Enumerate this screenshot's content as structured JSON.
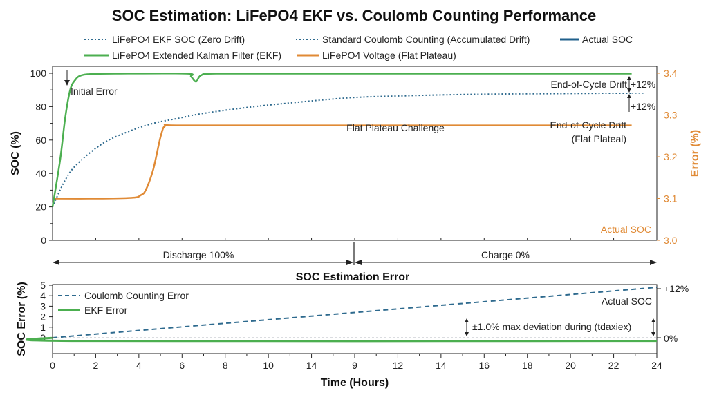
{
  "title": "SOC Estimation: LiFePO4 EKF vs. Coulomb Counting Performance",
  "colors": {
    "ekf": "#4caf50",
    "ekf_soc": "#2e6a8e",
    "coulomb": "#2e6a8e",
    "actual": "#1f5f8b",
    "voltage": "#e08a35",
    "axis": "#222222",
    "right_axis": "#e08a35"
  },
  "legend": {
    "ekf_soc": "LiFePO4 EKF SOC (Zero Drift)",
    "coulomb": "Standard Coulomb Counting (Accumulated Drift)",
    "actual": "Actual SOC",
    "ekf": "LiFePO4 Extended Kalman Filter (EKF)",
    "voltage": "LiFePO4 Voltage (Flat Plateau)"
  },
  "annotations": {
    "initial_error": "Initial Error",
    "eoc_drift": "End-of-Cycle Drift",
    "eoc_plus12_top": "+12%",
    "eoc_plus12_mid": "+12%",
    "flat_plateau": "Flat Plateau Challenge",
    "eoc_drift_flat_1": "End-of-Cycle Drift",
    "eoc_drift_flat_2": "(Flat Plateal)",
    "actual_soc_right": "Actual SOC",
    "discharge": "Discharge 100%",
    "charge": "Charge 0%",
    "bottom_plus12": "+12%",
    "bottom_zero": "0%",
    "bottom_actual": "Actual SOC",
    "max_dev": "±1.0% max deviation during (tdaxiex)"
  },
  "bottom": {
    "title": "SOC Estimation Error",
    "legend_coulomb": "Coulomb Counting Error",
    "legend_ekf": "EKF Error"
  },
  "chart_data": [
    {
      "type": "line",
      "ylabel": "SOC (%)",
      "ylabel_right": "Error (%)",
      "ylim": [
        0,
        100
      ],
      "ylim_right": [
        3.0,
        3.4
      ],
      "yticks": [
        0,
        20,
        40,
        60,
        80,
        100
      ],
      "yticks_right": [
        "3.0",
        "3.1",
        "3.2",
        "3.3",
        "3.4"
      ],
      "x_range_hours": [
        0,
        24
      ],
      "series": [
        {
          "name": "LiFePO4 Extended Kalman Filter (EKF)",
          "axis": "left",
          "x": [
            0,
            0.3,
            0.5,
            0.7,
            0.9,
            1.1,
            1.5,
            2.5,
            5.3,
            5.5,
            5.7,
            5.9,
            6.5,
            10,
            15,
            20,
            23
          ],
          "y": [
            20,
            48,
            73,
            90,
            96,
            98.5,
            99.5,
            99.8,
            99.8,
            98,
            95,
            98.8,
            99.8,
            99.8,
            99.8,
            99.8,
            99.8
          ]
        },
        {
          "name": "LiFePO4 EKF SOC (Zero Drift)",
          "axis": "left",
          "x": [
            0,
            0.5,
            1,
            2,
            3,
            4,
            5,
            6,
            8,
            10,
            12,
            14,
            16,
            18,
            20,
            22,
            23
          ],
          "y": [
            20,
            36,
            46,
            58,
            65,
            70,
            73,
            76,
            80,
            83,
            85.5,
            86.5,
            87.2,
            87.6,
            87.8,
            88,
            88
          ]
        },
        {
          "name": "Standard Coulomb Counting (Accumulated Drift)",
          "axis": "left",
          "x": [
            23,
            23.5
          ],
          "y": [
            88,
            88
          ]
        },
        {
          "name": "LiFePO4 Voltage (Flat Plateau)",
          "axis": "right",
          "x": [
            0,
            2,
            3.2,
            3.5,
            3.7,
            4.0,
            4.3,
            4.5,
            5,
            10,
            15,
            20,
            23
          ],
          "y": [
            3.1,
            3.1,
            3.102,
            3.108,
            3.12,
            3.17,
            3.25,
            3.275,
            3.275,
            3.275,
            3.275,
            3.275,
            3.275
          ]
        }
      ]
    },
    {
      "type": "line",
      "title": "SOC Estimation Error",
      "xlabel": "Time (Hours)",
      "ylabel": "SOC Error (%)",
      "ylim": [
        -1,
        5
      ],
      "yticks": [
        0,
        1,
        2,
        3,
        4,
        5
      ],
      "xlim": [
        0,
        24
      ],
      "xtick_labels": [
        "0",
        "2",
        "4",
        "6",
        "8",
        "10",
        "14",
        "9",
        "12",
        "14",
        "16",
        "18",
        "20",
        "22",
        "24"
      ],
      "series": [
        {
          "name": "Coulomb Counting Error",
          "x": [
            0,
            24
          ],
          "y": [
            0,
            4.8
          ]
        },
        {
          "name": "EKF Error",
          "x": [
            0,
            1,
            24
          ],
          "y": [
            0,
            -0.3,
            -0.3
          ]
        }
      ]
    }
  ]
}
